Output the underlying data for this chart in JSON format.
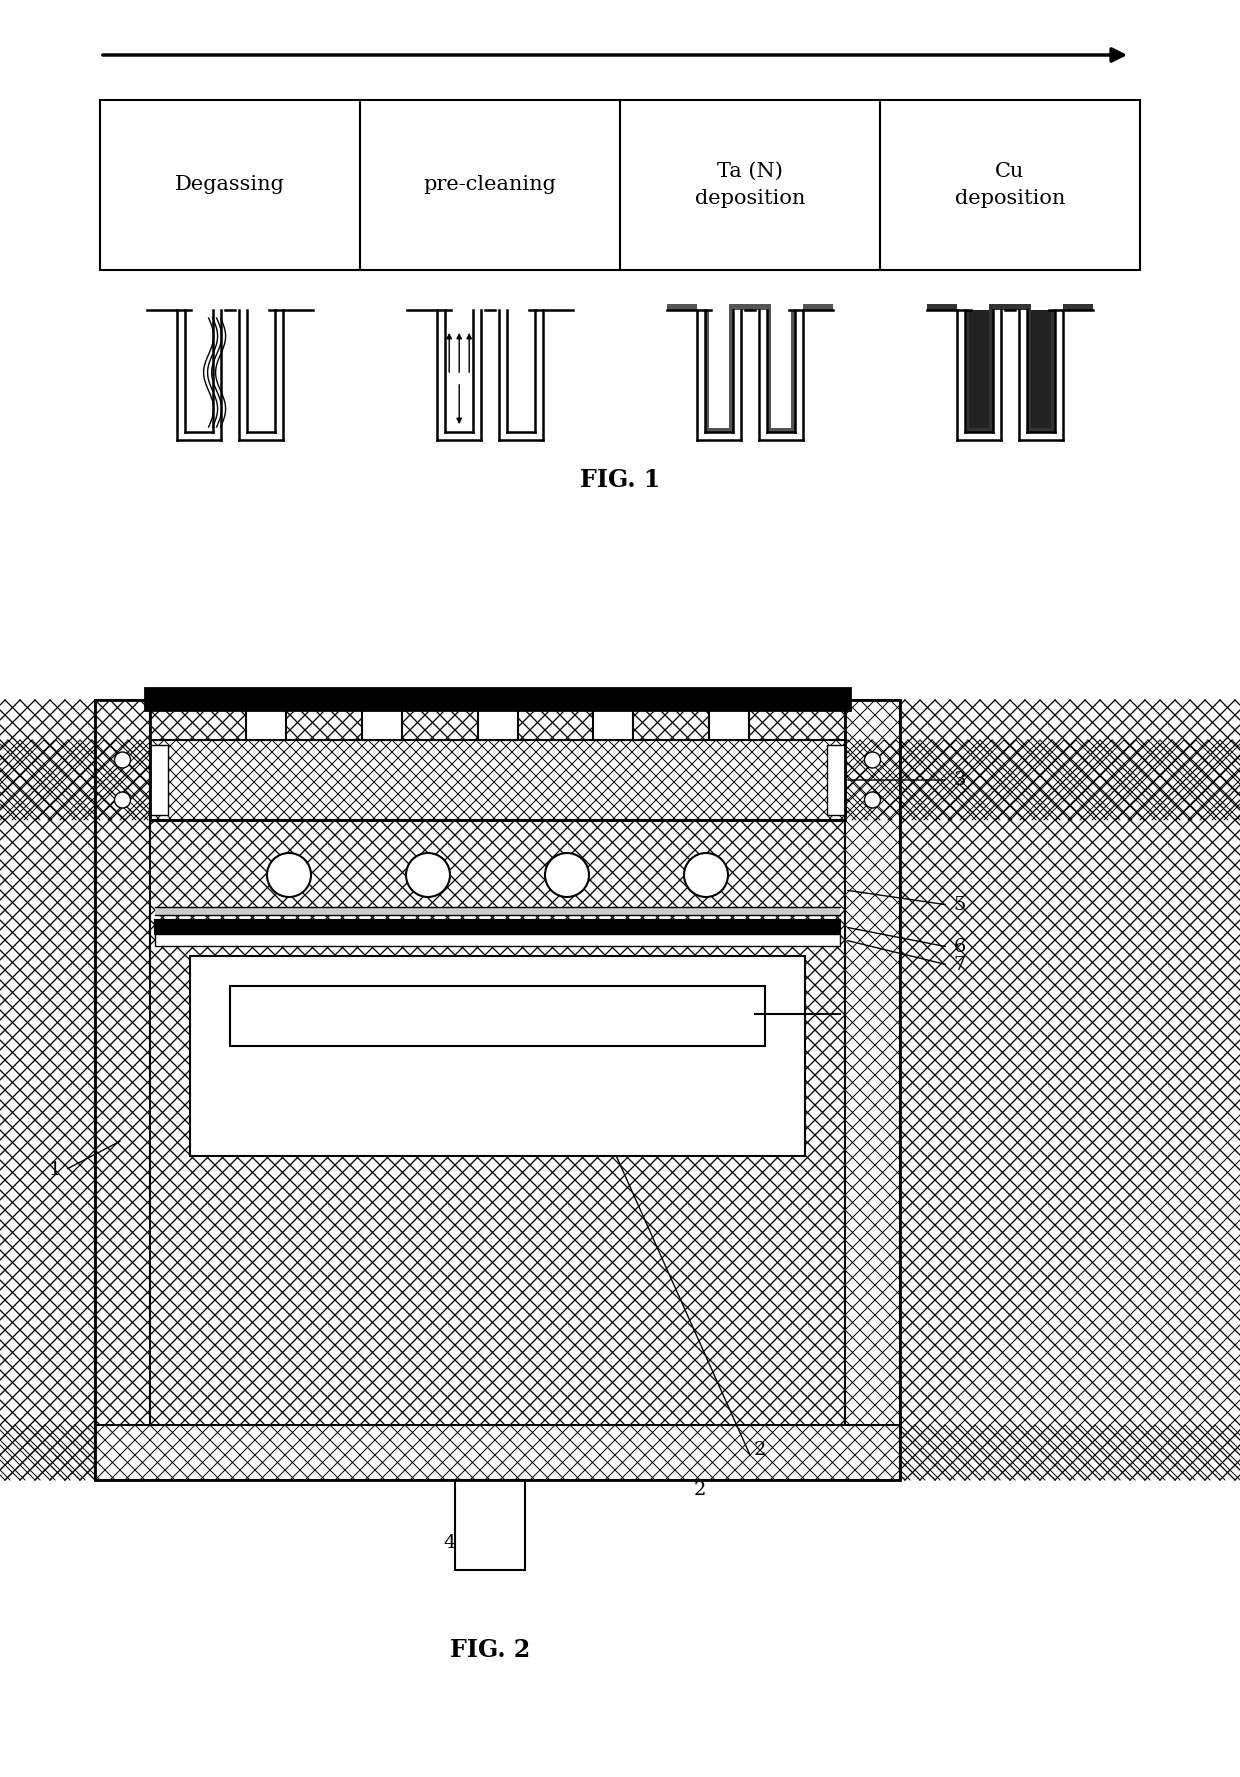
{
  "fig_width": 12.4,
  "fig_height": 17.77,
  "bg_color": "#ffffff",
  "fig1_label": "FIG. 1",
  "fig2_label": "FIG. 2",
  "process_steps": [
    "Degassing",
    "pre-cleaning",
    "Ta (N)\ndeposition",
    "Cu\ndeposition"
  ]
}
